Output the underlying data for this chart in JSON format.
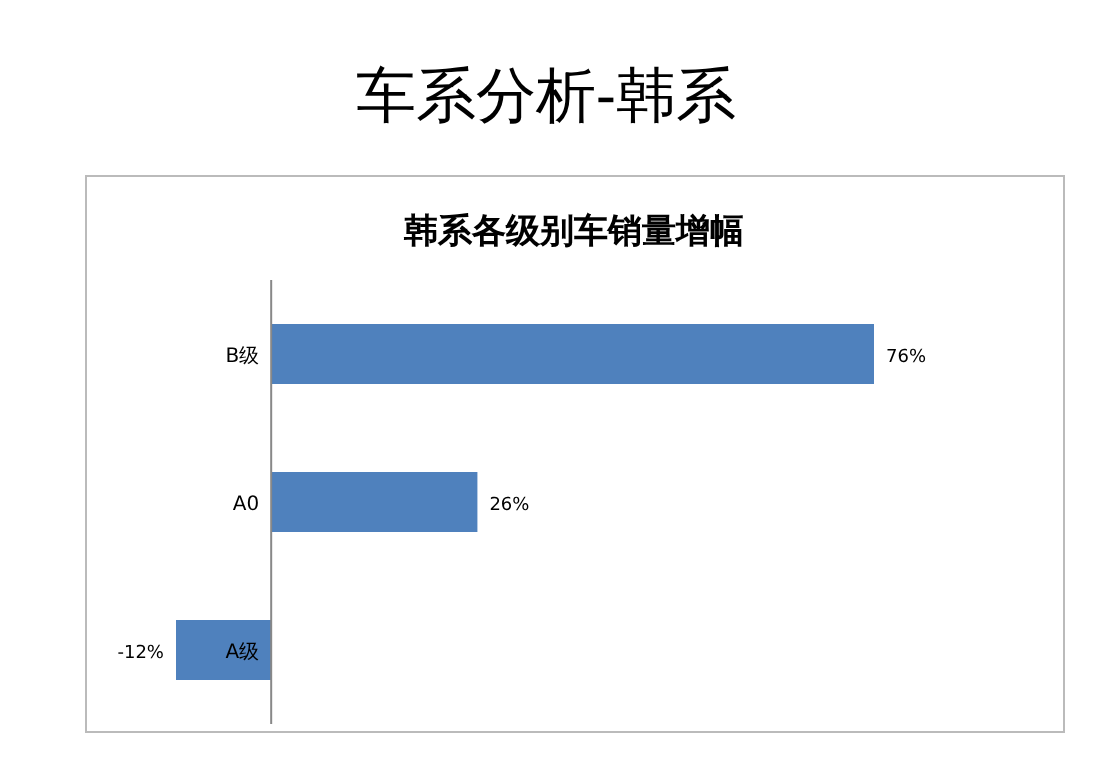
{
  "chart_data": {
    "type": "bar",
    "orientation": "horizontal",
    "title": "车系分析-韩系",
    "subtitle": "韩系各级别车销量增幅",
    "categories": [
      "B级",
      "A0",
      "A级"
    ],
    "values": [
      76,
      26,
      -12
    ],
    "value_labels": [
      "76%",
      "26%",
      "-12%"
    ],
    "color": "#4f81bd"
  }
}
